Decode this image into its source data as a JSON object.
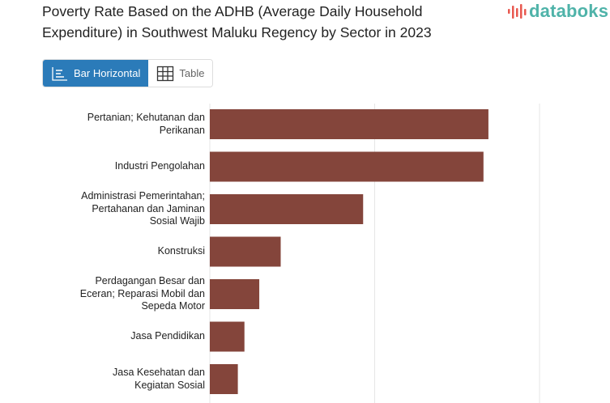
{
  "header": {
    "title": "Poverty Rate Based on the ADHB (Average Daily Household Expenditure) in Southwest Maluku Regency by Sector in 2023",
    "logo_text": "databoks"
  },
  "view_tabs": [
    {
      "label": "Bar Horizontal",
      "icon": "bar-chart-icon",
      "active": true
    },
    {
      "label": "Table",
      "icon": "table-icon",
      "active": false
    }
  ],
  "colors": {
    "bar": "#84453b",
    "accent": "#2b7bb9",
    "brand": "#4fb3a9",
    "brand_icon": "#e8584f"
  },
  "chart_data": {
    "type": "bar",
    "orientation": "horizontal",
    "categories": [
      "Pertanian; Kehutanan dan Perikanan",
      "Industri Pengolahan",
      "Administrasi Pemerintahan; Pertahanan dan Jaminan Sosial Wajib",
      "Konstruksi",
      "Perdagangan Besar dan Eceran; Reparasi Mobil dan Sepeda Motor",
      "Jasa Pendidikan",
      "Jasa Kesehatan dan Kegiatan Sosial"
    ],
    "values": [
      1.69,
      1.66,
      0.93,
      0.43,
      0.3,
      0.21,
      0.17
    ],
    "xlim": [
      0,
      2
    ],
    "grid": true,
    "title": "",
    "xlabel": "",
    "ylabel": ""
  }
}
